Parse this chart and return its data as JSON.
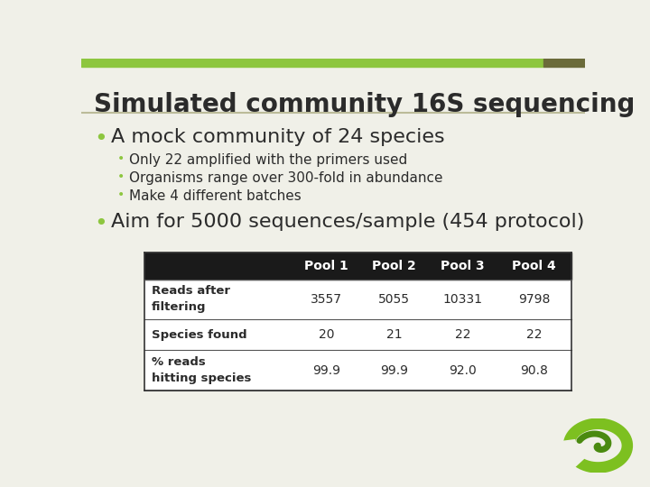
{
  "title": "Simulated community 16S sequencing",
  "title_bar_green": "#8DC63F",
  "title_bar_olive": "#6B6B3A",
  "background_color": "#F0F0E8",
  "bullet_color": "#8DC63F",
  "text_color": "#2B2B2B",
  "main_bullet1": "A mock community of 24 species",
  "sub_bullets": [
    "Only 22 amplified with the primers used",
    "Organisms range over 300-fold in abundance",
    "Make 4 different batches"
  ],
  "main_bullet2": "Aim for 5000 sequences/sample (454 protocol)",
  "table_header_bg": "#1A1A1A",
  "table_header_text_color": "#FFFFFF",
  "table_columns": [
    "",
    "Pool 1",
    "Pool 2",
    "Pool 3",
    "Pool 4"
  ],
  "table_rows": [
    [
      "Reads after\nfiltering",
      "3557",
      "5055",
      "10331",
      "9798"
    ],
    [
      "Species found",
      "20",
      "21",
      "22",
      "22"
    ],
    [
      "% reads\nhitting species",
      "99.9",
      "99.9",
      "92.0",
      "90.8"
    ]
  ],
  "separator_color": "#BBBB99",
  "table_border_color": "#555555",
  "table_bg": "#FFFFFF"
}
